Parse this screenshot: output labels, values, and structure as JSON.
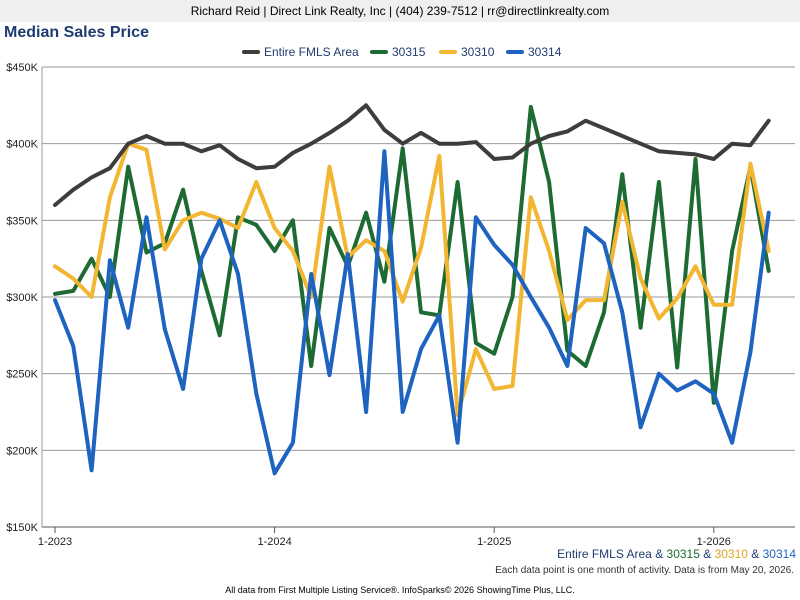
{
  "header": {
    "contact": "Richard Reid | Direct Link Realty, Inc | (404) 239-7512 | rr@directlinkrealty.com"
  },
  "footer": {
    "note": "Each data point is one month of activity. Data is from May 20, 2026.",
    "credit": "All data from First Multiple Listing Service®. InfoSparks© 2026 ShowingTime Plus, LLC."
  },
  "subtitle": {
    "parts": [
      "Entire FMLS Area",
      " & ",
      "30315",
      " & ",
      "30310",
      " & ",
      "30314"
    ]
  },
  "colors": {
    "title": "#1f3b6f",
    "grid": "#999999",
    "axis": "#555555"
  },
  "chart_data": {
    "type": "line",
    "title": "Median Sales Price",
    "xlabel": "",
    "ylabel": "",
    "y_ticks": [
      {
        "value": 150000,
        "label": "$150K"
      },
      {
        "value": 200000,
        "label": "$200K"
      },
      {
        "value": 250000,
        "label": "$250K"
      },
      {
        "value": 300000,
        "label": "$300K"
      },
      {
        "value": 350000,
        "label": "$350K"
      },
      {
        "value": 400000,
        "label": "$400K"
      },
      {
        "value": 450000,
        "label": "$450K"
      }
    ],
    "x_ticks": [
      {
        "index": 0,
        "label": "1-2023"
      },
      {
        "index": 12,
        "label": "1-2024"
      },
      {
        "index": 24,
        "label": "1-2025"
      },
      {
        "index": 36,
        "label": "1-2026"
      }
    ],
    "ylim": [
      150000,
      450000
    ],
    "x": [
      "1-2023",
      "2-2023",
      "3-2023",
      "4-2023",
      "5-2023",
      "6-2023",
      "7-2023",
      "8-2023",
      "9-2023",
      "10-2023",
      "11-2023",
      "12-2023",
      "1-2024",
      "2-2024",
      "3-2024",
      "4-2024",
      "5-2024",
      "6-2024",
      "7-2024",
      "8-2024",
      "9-2024",
      "10-2024",
      "11-2024",
      "12-2024",
      "1-2025",
      "2-2025",
      "3-2025",
      "4-2025",
      "5-2025",
      "6-2025",
      "7-2025",
      "8-2025",
      "9-2025",
      "10-2025",
      "11-2025",
      "12-2025",
      "1-2026",
      "2-2026",
      "3-2026",
      "4-2026"
    ],
    "grid": true,
    "legend_position": "top",
    "series": [
      {
        "name": "Entire FMLS Area",
        "color": "#3d3d3d",
        "values": [
          360000,
          370000,
          378000,
          384000,
          400000,
          405000,
          400000,
          400000,
          395000,
          399000,
          390000,
          384000,
          385000,
          394000,
          400000,
          407000,
          415000,
          425000,
          409000,
          400000,
          407000,
          400000,
          400000,
          401000,
          390000,
          391000,
          400000,
          405000,
          408000,
          415000,
          410000,
          405000,
          400000,
          395000,
          394000,
          393000,
          390000,
          400000,
          399000,
          415000
        ]
      },
      {
        "name": "30315",
        "color": "#1d6b33",
        "values": [
          302000,
          304000,
          325000,
          300000,
          385000,
          329000,
          335000,
          370000,
          317000,
          275000,
          352000,
          347000,
          330000,
          350000,
          255000,
          345000,
          320000,
          355000,
          310000,
          397000,
          290000,
          288000,
          375000,
          270000,
          263000,
          300000,
          424000,
          375000,
          265000,
          255000,
          290000,
          380000,
          280000,
          375000,
          254000,
          390000,
          231000,
          330000,
          385000,
          317000
        ]
      },
      {
        "name": "30310",
        "color": "#f2b632",
        "values": [
          320000,
          312000,
          300000,
          365000,
          400000,
          396000,
          331000,
          350000,
          355000,
          351000,
          345000,
          375000,
          345000,
          330000,
          300000,
          385000,
          326000,
          337000,
          330000,
          297000,
          332000,
          392000,
          223000,
          266000,
          240000,
          242000,
          365000,
          330000,
          285000,
          298000,
          298000,
          362000,
          312000,
          286000,
          299000,
          320000,
          295000,
          295000,
          387000,
          330000
        ]
      },
      {
        "name": "30314",
        "color": "#1e63c0",
        "values": [
          298000,
          268000,
          187000,
          324000,
          280000,
          352000,
          279000,
          240000,
          325000,
          350000,
          315000,
          237000,
          185000,
          205000,
          315000,
          249000,
          328000,
          225000,
          395000,
          225000,
          266000,
          288000,
          205000,
          352000,
          334000,
          321000,
          300000,
          280000,
          255000,
          345000,
          335000,
          290000,
          215000,
          250000,
          239000,
          245000,
          237000,
          205000,
          264000,
          355000
        ]
      }
    ]
  }
}
